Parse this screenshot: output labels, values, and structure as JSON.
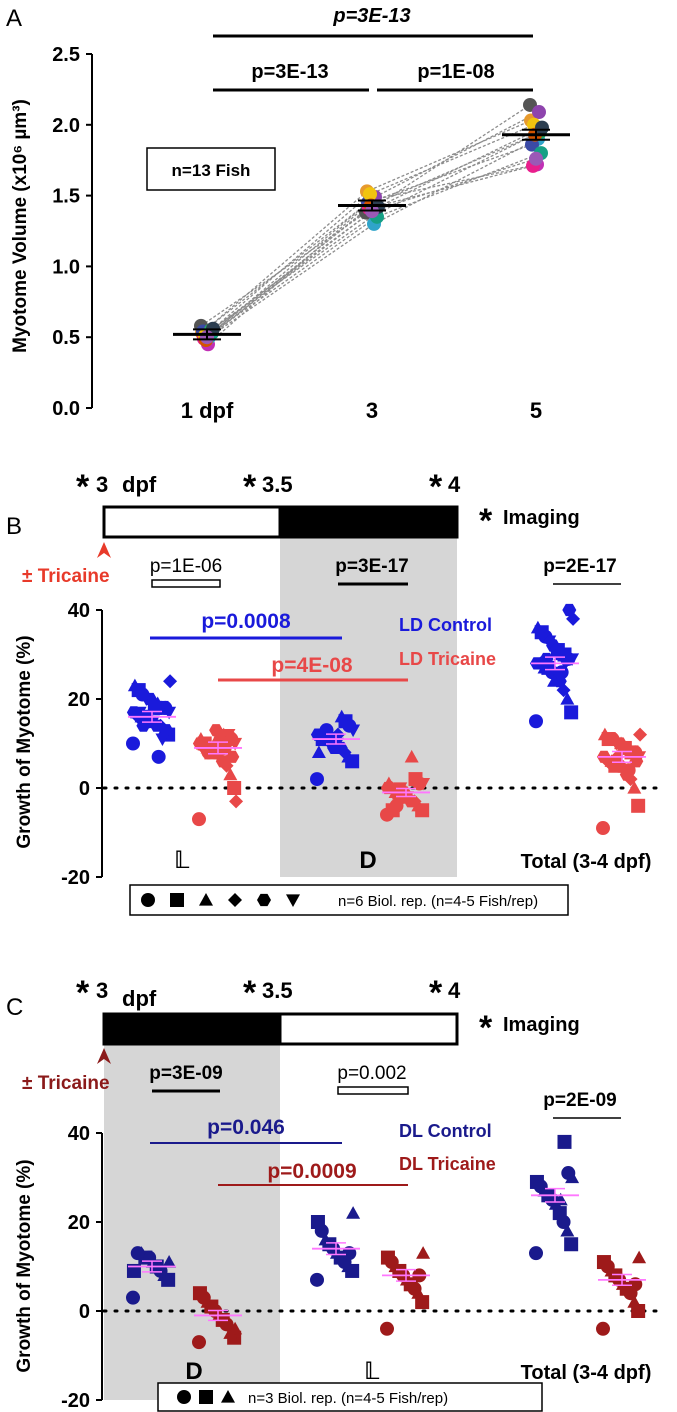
{
  "panels": {
    "A": {
      "letter": "A",
      "ylabel": "Myotome Volume (x10⁶ µm³)",
      "n_label": "n=13 Fish"
    },
    "B": {
      "letter": "B",
      "ylabel": "Growth of Myotome (%)",
      "tricaine_label": "± Tricaine",
      "legend_rep": "n=6 Biol. rep. (n=4-5 Fish/rep)",
      "period_labels": [
        "𝕃",
        "D"
      ],
      "series_names": [
        "LD Control",
        "LD Tricaine"
      ],
      "total_label": "Total (3-4 dpf)"
    },
    "C": {
      "letter": "C",
      "ylabel": "Growth of Myotome (%)",
      "tricaine_label": "± Tricaine",
      "legend_rep": "n=3 Biol. rep. (n=4-5 Fish/rep)",
      "period_labels": [
        "D",
        "𝕃"
      ],
      "series_names": [
        "DL Control",
        "DL Tricaine"
      ],
      "total_label": "Total (3-4 dpf)"
    }
  },
  "timelines": {
    "B": {
      "labels": [
        "3",
        "dpf",
        "3.5",
        "4"
      ],
      "star": "*",
      "imaging_label": "Imaging",
      "first_half": "light",
      "second_half": "dark"
    },
    "C": {
      "labels": [
        "3",
        "dpf",
        "3.5",
        "4"
      ],
      "star": "*",
      "imaging_label": "Imaging",
      "first_half": "dark",
      "second_half": "light"
    }
  },
  "colors": {
    "ld_control": "#1a1adb",
    "ld_tricaine": "#e84848",
    "dl_control": "#1a1a8c",
    "dl_tricaine": "#9e1a1a",
    "shade": "#d6d6d6",
    "mean_marker": "#ff77ff"
  },
  "chart_data": [
    {
      "panel": "A",
      "type": "scatter",
      "categories": [
        "1 dpf",
        "3",
        "5"
      ],
      "ylim": [
        0.0,
        2.5
      ],
      "yticks": [
        "0.0",
        "0.5",
        "1.0",
        "1.5",
        "2.0",
        "2.5"
      ],
      "ylabel": "Myotome Volume (x10⁶ µm³)",
      "means": [
        0.52,
        1.43,
        1.93
      ],
      "fish": [
        {
          "color": "#555555",
          "values": [
            0.58,
            1.38,
            2.14
          ]
        },
        {
          "color": "#c12fb5",
          "values": [
            0.45,
            1.47,
            1.72
          ]
        },
        {
          "color": "#e79a2d",
          "values": [
            0.53,
            1.53,
            2.03
          ]
        },
        {
          "color": "#2fa4c9",
          "values": [
            0.5,
            1.3,
            1.9
          ]
        },
        {
          "color": "#3b4aa6",
          "values": [
            0.54,
            1.45,
            1.86
          ]
        },
        {
          "color": "#8e44ad",
          "values": [
            0.52,
            1.49,
            2.09
          ]
        },
        {
          "color": "#e91e8c",
          "values": [
            0.49,
            1.41,
            1.71
          ]
        },
        {
          "color": "#27ae60",
          "values": [
            0.55,
            1.37,
            1.95
          ]
        },
        {
          "color": "#f1c40f",
          "values": [
            0.51,
            1.51,
            2.0
          ]
        },
        {
          "color": "#16a085",
          "values": [
            0.53,
            1.35,
            1.8
          ]
        },
        {
          "color": "#d35400",
          "values": [
            0.48,
            1.43,
            1.93
          ]
        },
        {
          "color": "#2c3e50",
          "values": [
            0.56,
            1.42,
            1.98
          ]
        },
        {
          "color": "#9b59b6",
          "values": [
            0.5,
            1.39,
            1.76
          ]
        }
      ],
      "comparisons": [
        {
          "label": "p=3E-13",
          "from": 0,
          "to": 2
        },
        {
          "label": "p=3E-13",
          "from": 0,
          "to": 1
        },
        {
          "label": "p=1E-08",
          "from": 1,
          "to": 2
        }
      ]
    },
    {
      "panel": "B",
      "type": "scatter",
      "ylim": [
        -20,
        40
      ],
      "yticks": [
        "-20",
        "0",
        "20",
        "40"
      ],
      "ylabel": "Growth of Myotome (%)",
      "groups": [
        {
          "name": "LD Control L",
          "series": "LD Control",
          "color": "#1a1adb",
          "mean": 16,
          "sem": 1.2,
          "values": [
            10,
            12,
            13,
            14,
            14,
            15,
            15,
            16,
            16,
            16,
            17,
            17,
            18,
            18,
            19,
            19,
            20,
            20,
            21,
            22,
            23,
            24,
            13,
            11,
            7,
            18,
            15,
            16,
            14,
            17
          ]
        },
        {
          "name": "LD Tricaine L",
          "series": "LD Tricaine",
          "color": "#e84848",
          "mean": 9,
          "sem": 1.3,
          "values": [
            -7,
            0,
            3,
            5,
            6,
            7,
            8,
            8,
            9,
            9,
            10,
            10,
            11,
            11,
            12,
            12,
            13,
            9,
            8,
            10,
            11,
            -3,
            7,
            12,
            9,
            10,
            11
          ]
        },
        {
          "name": "LD Control D",
          "series": "LD Control",
          "color": "#1a1adb",
          "mean": 11,
          "sem": 1.1,
          "values": [
            2,
            6,
            7,
            8,
            9,
            10,
            10,
            11,
            11,
            12,
            12,
            13,
            14,
            15,
            16,
            12,
            9,
            10,
            13,
            11,
            8
          ]
        },
        {
          "name": "LD Tricaine D",
          "series": "LD Tricaine",
          "color": "#e84848",
          "mean": -1,
          "sem": 0.9,
          "values": [
            -6,
            -5,
            -4,
            -3,
            -3,
            -2,
            -2,
            -1,
            -1,
            0,
            0,
            1,
            1,
            2,
            7,
            -2,
            -1,
            0,
            -4,
            -5,
            1
          ]
        },
        {
          "name": "LD Control Total",
          "series": "LD Control",
          "color": "#1a1adb",
          "mean": 28,
          "sem": 1.4,
          "values": [
            15,
            17,
            20,
            22,
            24,
            25,
            26,
            27,
            27,
            28,
            28,
            29,
            29,
            30,
            30,
            31,
            32,
            33,
            34,
            35,
            36,
            38,
            40,
            28,
            26,
            31,
            24,
            33,
            29,
            27
          ]
        },
        {
          "name": "LD Tricaine Total",
          "series": "LD Tricaine",
          "color": "#e84848",
          "mean": 7,
          "sem": 1.2,
          "values": [
            -9,
            -4,
            0,
            2,
            3,
            4,
            5,
            5,
            6,
            6,
            7,
            7,
            8,
            8,
            9,
            9,
            10,
            10,
            11,
            11,
            12,
            12,
            6,
            8,
            4,
            9,
            10,
            7,
            5,
            11
          ]
        }
      ],
      "comparisons": [
        {
          "label": "p=1E-06",
          "style": "open-bar"
        },
        {
          "label": "p=3E-17"
        },
        {
          "label": "p=0.0008",
          "color": "#1a1adb"
        },
        {
          "label": "p=4E-08",
          "color": "#e84848"
        },
        {
          "label": "p=2E-17"
        }
      ]
    },
    {
      "panel": "C",
      "type": "scatter",
      "ylim": [
        -20,
        40
      ],
      "yticks": [
        "-20",
        "0",
        "20",
        "40"
      ],
      "ylabel": "Growth of Myotome (%)",
      "groups": [
        {
          "name": "DL Control D",
          "series": "DL Control",
          "color": "#1a1a8c",
          "mean": 10,
          "sem": 1.2,
          "values": [
            3,
            7,
            8,
            9,
            10,
            11,
            12,
            12,
            13,
            13,
            9,
            11
          ]
        },
        {
          "name": "DL Tricaine D",
          "series": "DL Tricaine",
          "color": "#9e1a1a",
          "mean": -1,
          "sem": 1.1,
          "values": [
            -7,
            -6,
            -5,
            -3,
            -2,
            -1,
            0,
            1,
            2,
            3,
            4,
            -4
          ]
        },
        {
          "name": "DL Control L",
          "series": "DL Control",
          "color": "#1a1a8c",
          "mean": 14,
          "sem": 1.3,
          "values": [
            7,
            9,
            10,
            11,
            12,
            13,
            14,
            15,
            16,
            18,
            20,
            22,
            13
          ]
        },
        {
          "name": "DL Tricaine L",
          "series": "DL Tricaine",
          "color": "#9e1a1a",
          "mean": 8,
          "sem": 1.3,
          "values": [
            -4,
            2,
            4,
            5,
            6,
            7,
            8,
            9,
            10,
            11,
            12,
            13,
            8
          ]
        },
        {
          "name": "DL Control Total",
          "series": "DL Control",
          "color": "#1a1a8c",
          "mean": 26,
          "sem": 1.5,
          "values": [
            13,
            15,
            18,
            20,
            22,
            24,
            25,
            26,
            27,
            28,
            29,
            30,
            31,
            38,
            25
          ]
        },
        {
          "name": "DL Tricaine Total",
          "series": "DL Tricaine",
          "color": "#9e1a1a",
          "mean": 7,
          "sem": 1.2,
          "values": [
            -4,
            0,
            2,
            4,
            5,
            6,
            7,
            8,
            9,
            10,
            11,
            12,
            6
          ]
        }
      ],
      "comparisons": [
        {
          "label": "p=3E-09"
        },
        {
          "label": "p=0.002",
          "style": "open-bar"
        },
        {
          "label": "p=0.046",
          "color": "#1a1a8c"
        },
        {
          "label": "p=0.0009",
          "color": "#9e1a1a"
        },
        {
          "label": "p=2E-09"
        }
      ]
    }
  ]
}
